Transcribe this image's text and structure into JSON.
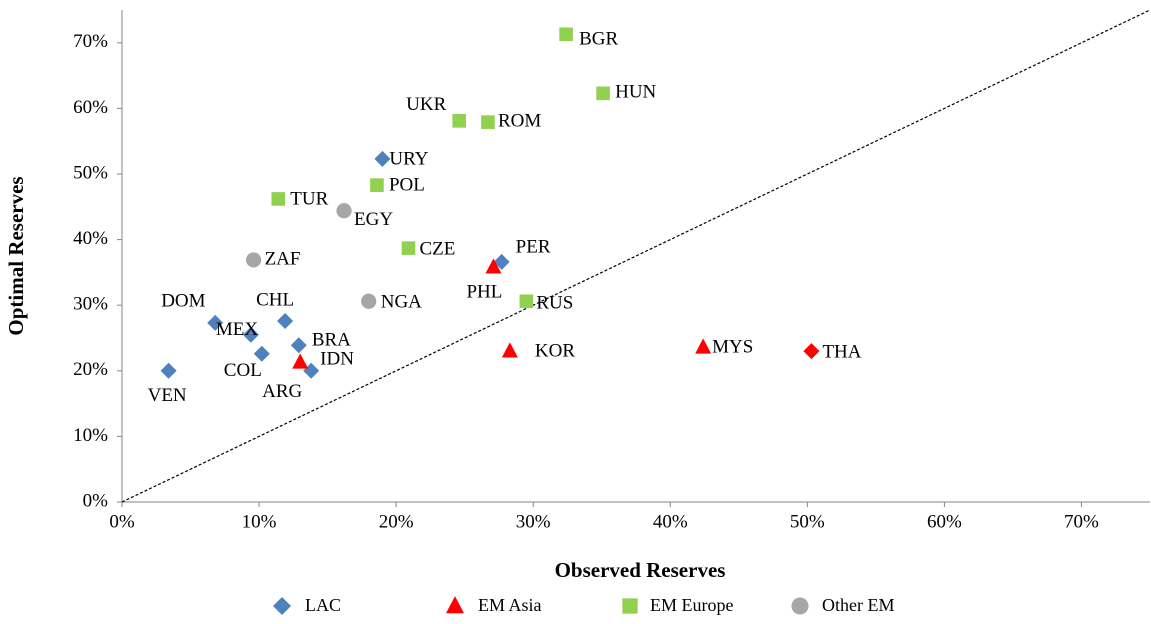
{
  "chart_data": {
    "type": "scatter",
    "x_label": "Observed Reserves",
    "y_label": "Optimal Reserves",
    "xlim": [
      0,
      75
    ],
    "ylim": [
      0,
      75
    ],
    "xticks": [
      {
        "value": 0,
        "label": "0%"
      },
      {
        "value": 10,
        "label": "10%"
      },
      {
        "value": 20,
        "label": "20%"
      },
      {
        "value": 30,
        "label": "30%"
      },
      {
        "value": 40,
        "label": "40%"
      },
      {
        "value": 50,
        "label": "50%"
      },
      {
        "value": 60,
        "label": "60%"
      },
      {
        "value": 70,
        "label": "70%"
      }
    ],
    "yticks": [
      {
        "value": 0,
        "label": "0%"
      },
      {
        "value": 10,
        "label": "10%"
      },
      {
        "value": 20,
        "label": "20%"
      },
      {
        "value": 30,
        "label": "30%"
      },
      {
        "value": 40,
        "label": "40%"
      },
      {
        "value": 50,
        "label": "50%"
      },
      {
        "value": 60,
        "label": "60%"
      },
      {
        "value": 70,
        "label": "70%"
      }
    ],
    "grid": false,
    "legend": "bottom",
    "series": [
      {
        "name": "LAC",
        "color": "#4f81bd",
        "marker": "diamond",
        "labels": [
          "VEN",
          "DOM",
          "MEX",
          "CHL",
          "COL",
          "BRA",
          "ARG",
          "URY",
          "PER"
        ],
        "x": [
          3.4,
          6.8,
          9.4,
          11.9,
          10.2,
          12.9,
          13.8,
          19.0,
          27.7
        ],
        "values": [
          20.0,
          27.3,
          25.5,
          27.6,
          22.6,
          23.9,
          20.0,
          52.3,
          36.6
        ]
      },
      {
        "name": "EM Asia",
        "color": "#ff0000",
        "marker": "triangle",
        "point_markers": [
          "triangle",
          "triangle",
          "triangle",
          "triangle",
          "diamond"
        ],
        "labels": [
          "IDN",
          "PHL",
          "KOR",
          "MYS",
          "THA"
        ],
        "x": [
          13.0,
          27.1,
          28.3,
          42.4,
          50.3
        ],
        "values": [
          21.3,
          35.8,
          23.0,
          23.6,
          23.0
        ]
      },
      {
        "name": "EM Europe",
        "color": "#92d050",
        "marker": "square",
        "labels": [
          "BGR",
          "HUN",
          "UKR",
          "ROM",
          "POL",
          "TUR",
          "CZE",
          "RUS"
        ],
        "x": [
          32.4,
          35.1,
          24.6,
          26.7,
          18.6,
          11.4,
          20.9,
          29.5
        ],
        "values": [
          71.3,
          62.3,
          58.1,
          57.9,
          48.3,
          46.2,
          38.7,
          30.6
        ]
      },
      {
        "name": "Other EM",
        "color": "#a6a6a6",
        "marker": "circle",
        "labels": [
          "EGY",
          "ZAF",
          "NGA"
        ],
        "x": [
          16.2,
          9.6,
          18.0
        ],
        "values": [
          44.4,
          36.9,
          30.6
        ]
      }
    ]
  }
}
